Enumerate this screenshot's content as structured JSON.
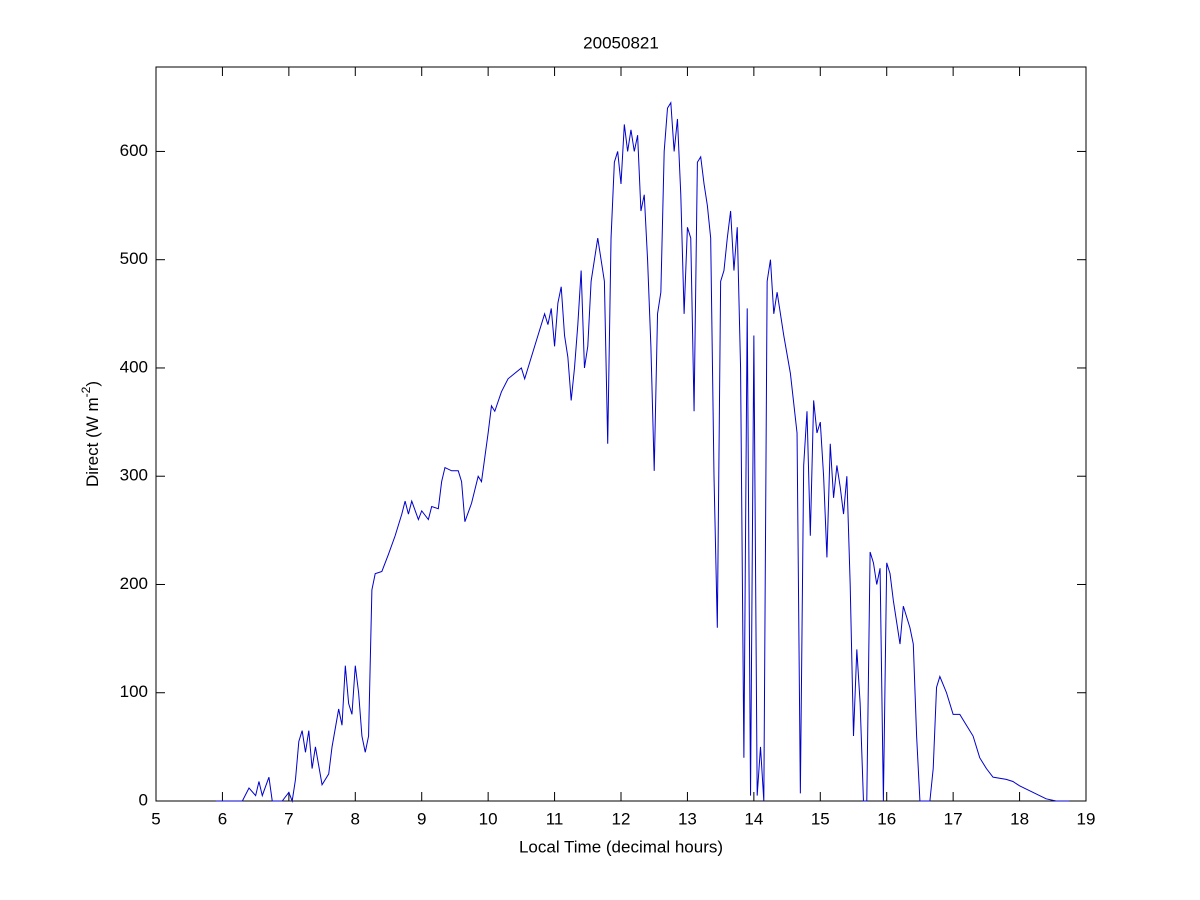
{
  "chart_data": {
    "type": "line",
    "title": "20050821",
    "xlabel": "Local Time (decimal hours)",
    "ylabel": [
      "Direct (W m",
      "-2",
      ")"
    ],
    "xlim": [
      5,
      19
    ],
    "xticks": [
      5,
      6,
      7,
      8,
      9,
      10,
      11,
      12,
      13,
      14,
      15,
      16,
      17,
      18,
      19
    ],
    "ylim": [
      0,
      678
    ],
    "yticks": [
      0,
      100,
      200,
      300,
      400,
      500,
      600
    ],
    "grid": false,
    "series": [
      {
        "color": "#0000cc",
        "x": [
          5.9,
          6.3,
          6.4,
          6.5,
          6.55,
          6.6,
          6.7,
          6.75,
          6.9,
          7.0,
          7.05,
          7.1,
          7.15,
          7.2,
          7.25,
          7.3,
          7.35,
          7.4,
          7.5,
          7.6,
          7.65,
          7.75,
          7.8,
          7.85,
          7.9,
          7.95,
          8.0,
          8.05,
          8.1,
          8.15,
          8.2,
          8.25,
          8.3,
          8.4,
          8.5,
          8.6,
          8.7,
          8.75,
          8.8,
          8.85,
          8.95,
          9.0,
          9.1,
          9.15,
          9.25,
          9.3,
          9.35,
          9.45,
          9.55,
          9.6,
          9.65,
          9.75,
          9.85,
          9.9,
          10.0,
          10.05,
          10.1,
          10.2,
          10.3,
          10.4,
          10.5,
          10.55,
          10.65,
          10.75,
          10.85,
          10.9,
          10.95,
          11.0,
          11.05,
          11.1,
          11.15,
          11.2,
          11.25,
          11.3,
          11.35,
          11.4,
          11.45,
          11.5,
          11.55,
          11.6,
          11.65,
          11.7,
          11.75,
          11.8,
          11.85,
          11.9,
          11.95,
          12.0,
          12.05,
          12.1,
          12.15,
          12.2,
          12.25,
          12.3,
          12.35,
          12.4,
          12.45,
          12.5,
          12.55,
          12.6,
          12.65,
          12.7,
          12.75,
          12.8,
          12.85,
          12.9,
          12.95,
          13.0,
          13.05,
          13.1,
          13.15,
          13.2,
          13.25,
          13.3,
          13.35,
          13.4,
          13.45,
          13.5,
          13.55,
          13.6,
          13.65,
          13.7,
          13.75,
          13.8,
          13.85,
          13.9,
          13.95,
          14.0,
          14.05,
          14.1,
          14.15,
          14.2,
          14.25,
          14.3,
          14.35,
          14.45,
          14.55,
          14.65,
          14.7,
          14.75,
          14.8,
          14.85,
          14.9,
          14.95,
          15.0,
          15.05,
          15.1,
          15.15,
          15.2,
          15.25,
          15.3,
          15.35,
          15.4,
          15.45,
          15.5,
          15.55,
          15.6,
          15.65,
          15.7,
          15.75,
          15.8,
          15.85,
          15.9,
          15.95,
          16.0,
          16.05,
          16.1,
          16.2,
          16.25,
          16.35,
          16.4,
          16.45,
          16.5,
          16.65,
          16.7,
          16.75,
          16.8,
          16.9,
          17.0,
          17.1,
          17.2,
          17.3,
          17.4,
          17.5,
          17.6,
          17.8,
          17.9,
          18.0,
          18.2,
          18.4,
          18.55,
          18.75
        ],
        "values": [
          0,
          0,
          12,
          5,
          18,
          5,
          22,
          0,
          0,
          8,
          0,
          20,
          55,
          65,
          45,
          65,
          30,
          50,
          15,
          25,
          50,
          85,
          70,
          125,
          90,
          80,
          125,
          100,
          60,
          45,
          60,
          195,
          210,
          212,
          228,
          245,
          265,
          277,
          265,
          277,
          260,
          268,
          260,
          272,
          270,
          295,
          308,
          305,
          305,
          295,
          258,
          275,
          300,
          295,
          340,
          365,
          360,
          378,
          390,
          395,
          400,
          390,
          410,
          430,
          450,
          440,
          455,
          420,
          460,
          475,
          430,
          410,
          370,
          400,
          440,
          490,
          400,
          420,
          480,
          500,
          520,
          500,
          480,
          330,
          520,
          590,
          600,
          570,
          625,
          600,
          620,
          600,
          615,
          545,
          560,
          500,
          420,
          305,
          450,
          470,
          600,
          640,
          645,
          600,
          630,
          560,
          450,
          530,
          520,
          360,
          590,
          595,
          570,
          550,
          520,
          300,
          160,
          480,
          490,
          520,
          545,
          490,
          530,
          400,
          40,
          455,
          5,
          430,
          5,
          50,
          0,
          480,
          500,
          450,
          470,
          430,
          395,
          340,
          7,
          310,
          360,
          245,
          370,
          340,
          350,
          300,
          225,
          330,
          280,
          310,
          290,
          265,
          300,
          200,
          60,
          140,
          90,
          0,
          0,
          230,
          220,
          200,
          215,
          0,
          220,
          210,
          185,
          145,
          180,
          160,
          145,
          60,
          0,
          0,
          30,
          105,
          115,
          100,
          80,
          80,
          70,
          60,
          40,
          30,
          22,
          20,
          18,
          14,
          8,
          2,
          0,
          0
        ]
      }
    ]
  }
}
